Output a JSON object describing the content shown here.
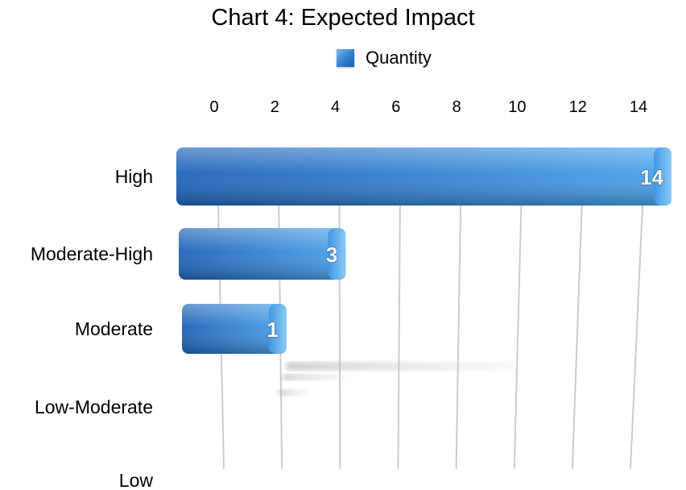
{
  "chart_data": {
    "type": "bar",
    "orientation": "horizontal",
    "title": "Chart 4: Expected Impact",
    "legend": {
      "position": "top",
      "entries": [
        "Quantity"
      ]
    },
    "series": [
      {
        "name": "Quantity",
        "values": [
          14,
          3,
          1,
          0,
          0
        ]
      }
    ],
    "categories": [
      "High",
      "Moderate-High",
      "Moderate",
      "Low-Moderate",
      "Low"
    ],
    "x_ticks": [
      "0",
      "2",
      "4",
      "6",
      "8",
      "10",
      "12",
      "14"
    ],
    "xlim": [
      0,
      14
    ],
    "grid": true,
    "colors": {
      "bar_light": "#7cc0f2",
      "bar_mid": "#2f82d6",
      "bar_dark": "#1a5aa8",
      "grid": "#cccccc"
    }
  }
}
